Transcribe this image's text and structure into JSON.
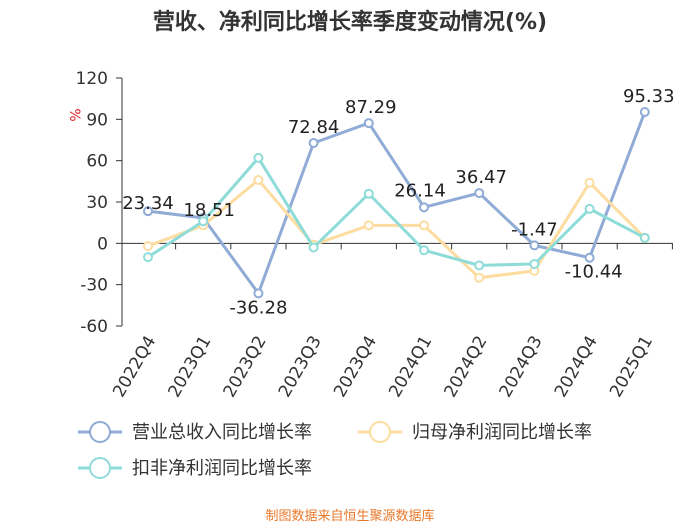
{
  "chart_data": {
    "type": "line",
    "title": "营收、净利同比增长率季度变动情况(%)",
    "ylabel": "%",
    "ylim": [
      -60,
      120
    ],
    "yticks": [
      120,
      90,
      60,
      30,
      0,
      -30,
      -60
    ],
    "categories": [
      "2022Q4",
      "2023Q1",
      "2023Q2",
      "2023Q3",
      "2023Q4",
      "2024Q1",
      "2024Q2",
      "2024Q3",
      "2024Q4",
      "2025Q1"
    ],
    "series": [
      {
        "name": "营业总收入同比增长率",
        "color": "#8fabd6",
        "values": [
          23.34,
          18.51,
          -36.28,
          72.84,
          87.29,
          26.14,
          36.47,
          -1.47,
          -10.44,
          95.33
        ],
        "data_labels": [
          "23.34",
          "18.51",
          "-36.28",
          "72.84",
          "87.29",
          "26.14",
          "36.47",
          "-1.47",
          "-10.44",
          "95.33"
        ]
      },
      {
        "name": "归母净利润同比增长率",
        "color": "#fddca0",
        "values": [
          -2,
          13,
          46,
          -1,
          13,
          13,
          -25,
          -20,
          44,
          4
        ]
      },
      {
        "name": "扣非净利润同比增长率",
        "color": "#8edcd8",
        "values": [
          -10,
          16,
          62,
          -3,
          36,
          -5,
          -16,
          -15,
          25,
          4
        ]
      }
    ],
    "grid": false,
    "legend_position": "bottom"
  },
  "source_note": "制图数据来自恒生聚源数据库"
}
